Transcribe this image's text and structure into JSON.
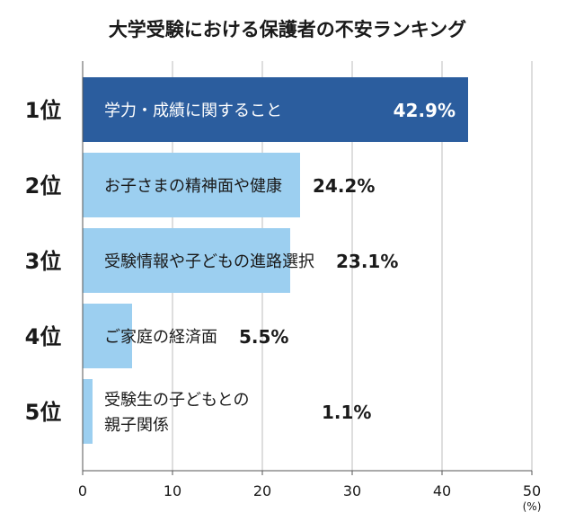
{
  "chart_data": {
    "type": "bar",
    "orientation": "horizontal",
    "title": "大学受験における保護者の不安ランキング",
    "unit": "(%)",
    "ranks": [
      "1位",
      "2位",
      "3位",
      "4位",
      "5位"
    ],
    "categories": [
      [
        "学力・成績に関すること"
      ],
      [
        "お子さまの精神面や健康"
      ],
      [
        "受験情報や子どもの進路選択"
      ],
      [
        "ご家庭の経済面"
      ],
      [
        "受験生の子どもとの",
        "親子関係"
      ]
    ],
    "values": [
      42.9,
      24.2,
      23.1,
      5.5,
      1.1
    ],
    "value_labels": [
      "42.9%",
      "24.2%",
      "23.1%",
      "5.5%",
      "1.1%"
    ],
    "xlim": [
      0,
      50
    ],
    "xticks": [
      0,
      10,
      20,
      30,
      40,
      50
    ],
    "grid": true,
    "colors": {
      "highlight": "#2b5d9e",
      "bar": "#9ccff0",
      "grid": "#bdbdbd",
      "axis": "#555555"
    }
  }
}
